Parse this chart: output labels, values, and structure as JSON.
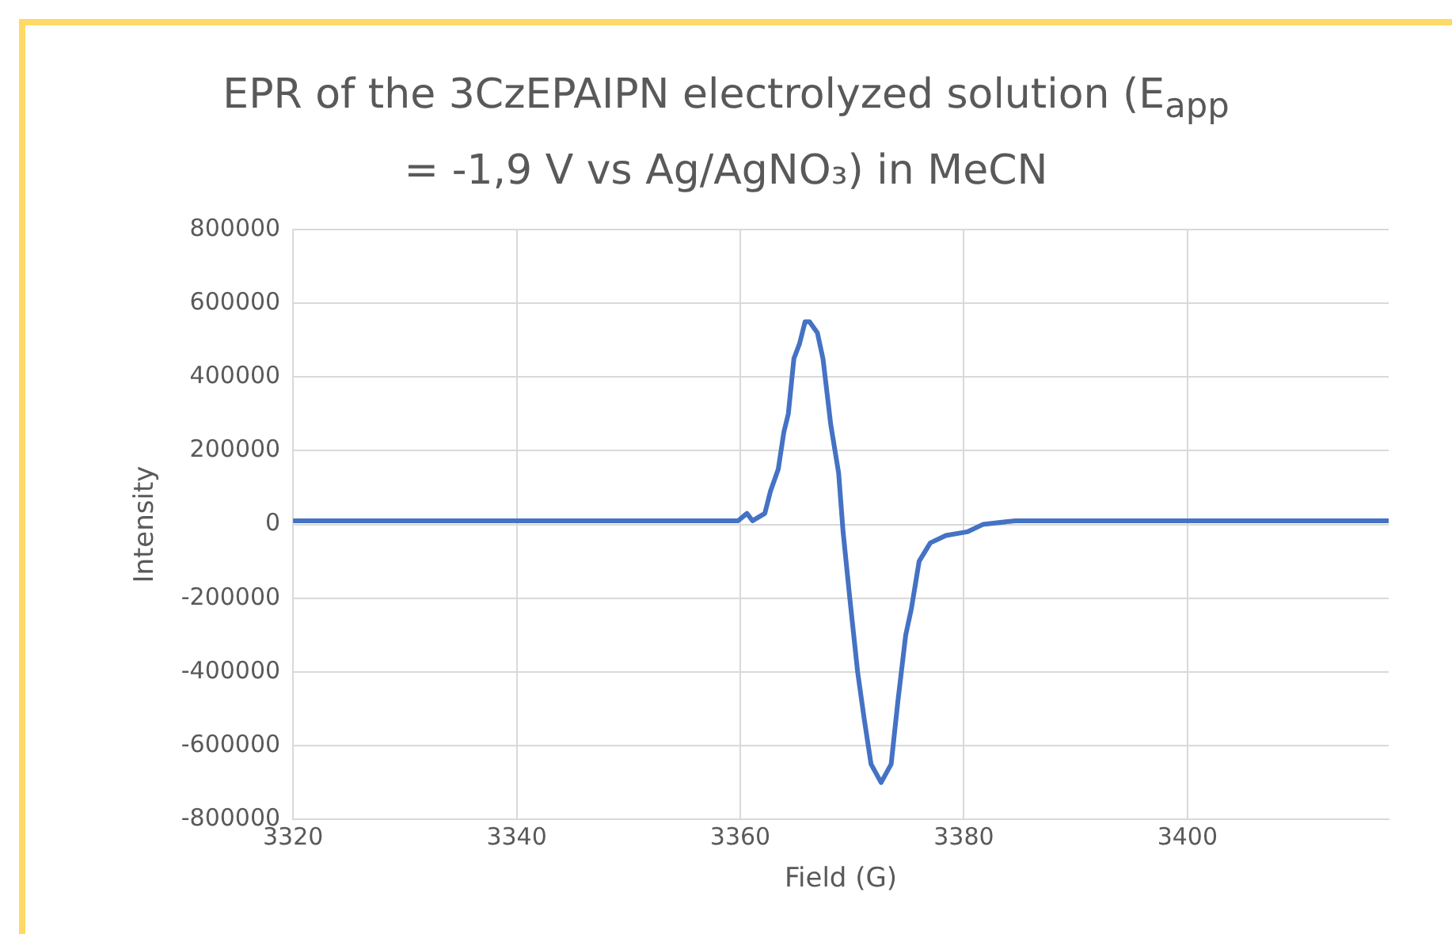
{
  "chart_data": {
    "type": "line",
    "title": "EPR of the 3CzEPAIPN electrolyzed solution (E$_{app}$ = -1,9 V vs Ag/AgNO₃) in MeCN",
    "xlabel": "Field (G)",
    "ylabel": "Intensity",
    "xlim": [
      3320,
      3418
    ],
    "xticks": [
      3320,
      3340,
      3360,
      3380,
      3400
    ],
    "ylim": [
      -800000,
      800000
    ],
    "yticks": [
      -800000,
      -600000,
      -400000,
      -200000,
      0,
      200000,
      400000,
      600000,
      800000
    ],
    "grid": true,
    "legend": false,
    "marker": "none",
    "line_style": "solid",
    "series": [
      {
        "color": "#4472c4",
        "x": [
          3320,
          3322,
          3324,
          3326,
          3328,
          3330,
          3332,
          3334,
          3336,
          3338,
          3340,
          3342,
          3344,
          3346,
          3348,
          3350,
          3352,
          3354,
          3356,
          3358,
          3359.8,
          3360.6,
          3361.1,
          3362.2,
          3362.7,
          3363.4,
          3363.9,
          3364.3,
          3364.8,
          3365.3,
          3365.8,
          3366.2,
          3366.9,
          3367.4,
          3368.1,
          3368.8,
          3369.2,
          3369.8,
          3370.5,
          3371.1,
          3371.7,
          3372.6,
          3373.5,
          3374.1,
          3374.8,
          3375.3,
          3376,
          3377,
          3378.4,
          3380.3,
          3381.7,
          3384.6,
          3387,
          3390,
          3393,
          3396,
          3399,
          3402,
          3405,
          3408,
          3411,
          3414,
          3416,
          3418
        ],
        "values": [
          10000,
          10000,
          10000,
          10000,
          10000,
          10000,
          10000,
          10000,
          10000,
          10000,
          10000,
          10000,
          10000,
          10000,
          10000,
          10000,
          10000,
          10000,
          10000,
          10000,
          10000,
          30000,
          10000,
          30000,
          90000,
          150000,
          250000,
          300000,
          450000,
          490000,
          550000,
          550000,
          520000,
          450000,
          270000,
          140000,
          -20000,
          -200000,
          -400000,
          -530000,
          -650000,
          -700000,
          -650000,
          -480000,
          -300000,
          -230000,
          -100000,
          -50000,
          -30000,
          -20000,
          0,
          10000,
          10000,
          10000,
          10000,
          10000,
          10000,
          10000,
          10000,
          10000,
          10000,
          10000,
          10000,
          10000
        ]
      }
    ]
  }
}
